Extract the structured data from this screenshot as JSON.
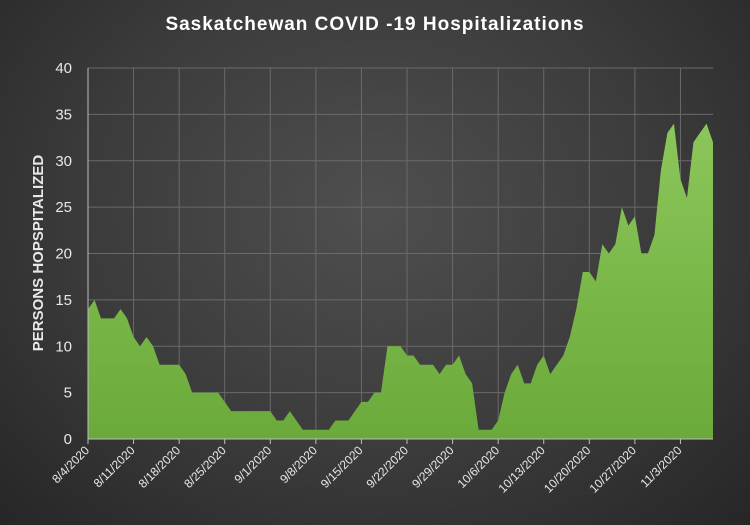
{
  "chart_data": {
    "type": "area",
    "title": "Saskatchewan COVID -19 Hospitalizations",
    "xlabel": "",
    "ylabel": "PERSONS HOPSPITALIZED",
    "ylim": [
      0,
      40
    ],
    "yticks": [
      0,
      5,
      10,
      15,
      20,
      25,
      30,
      35,
      40
    ],
    "grid": true,
    "legend": "none",
    "color": "#6aaa3a",
    "x_tick_labels": [
      "8/4/2020",
      "8/11/2020",
      "8/18/2020",
      "8/25/2020",
      "9/1/2020",
      "9/8/2020",
      "9/15/2020",
      "9/22/2020",
      "9/29/2020",
      "10/6/2020",
      "10/13/2020",
      "10/20/2020",
      "10/27/2020",
      "11/3/2020"
    ],
    "start_date": "8/4/2020",
    "end_date": "11/9/2020",
    "values": [
      14,
      15,
      13,
      13,
      13,
      14,
      13,
      11,
      10,
      11,
      10,
      8,
      8,
      8,
      8,
      7,
      5,
      5,
      5,
      5,
      5,
      4,
      3,
      3,
      3,
      3,
      3,
      3,
      3,
      2,
      2,
      3,
      2,
      1,
      1,
      1,
      1,
      1,
      2,
      2,
      2,
      3,
      4,
      4,
      5,
      5,
      10,
      10,
      10,
      9,
      9,
      8,
      8,
      8,
      7,
      8,
      8,
      9,
      7,
      6,
      1,
      1,
      1,
      2,
      5,
      7,
      8,
      6,
      6,
      8,
      9,
      7,
      8,
      9,
      11,
      14,
      18,
      18,
      17,
      21,
      20,
      21,
      25,
      23,
      24,
      20,
      20,
      22,
      29,
      33,
      34,
      28,
      26,
      32,
      33,
      34,
      32
    ]
  }
}
